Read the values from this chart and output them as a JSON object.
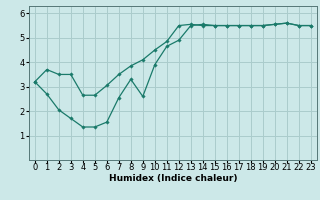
{
  "xlabel": "Humidex (Indice chaleur)",
  "bg_color": "#cce8e8",
  "grid_color": "#aacccc",
  "line_color": "#1a7a6a",
  "line1_x": [
    0,
    1,
    2,
    3,
    4,
    5,
    6,
    7,
    8,
    9,
    10,
    11,
    12,
    13,
    14,
    15,
    16,
    17,
    18,
    19,
    20,
    21,
    22,
    23
  ],
  "line1_y": [
    3.2,
    3.7,
    3.5,
    3.5,
    2.65,
    2.65,
    3.05,
    3.5,
    3.85,
    4.1,
    4.5,
    4.85,
    5.5,
    5.55,
    5.5,
    5.5,
    5.5,
    5.5,
    5.5,
    5.5,
    5.55,
    5.6,
    5.5,
    5.5
  ],
  "line2_x": [
    0,
    1,
    2,
    3,
    4,
    5,
    6,
    7,
    8,
    9,
    10,
    11,
    12,
    13,
    14,
    15,
    16,
    17,
    18,
    19,
    20,
    21,
    22,
    23
  ],
  "line2_y": [
    3.2,
    2.7,
    2.05,
    1.7,
    1.35,
    1.35,
    1.55,
    2.55,
    3.3,
    2.6,
    3.9,
    4.65,
    4.9,
    5.5,
    5.55,
    5.5,
    5.5,
    5.5,
    5.5,
    5.5,
    5.55,
    5.6,
    5.5,
    5.5
  ],
  "ylim": [
    0,
    6.3
  ],
  "xlim": [
    -0.5,
    23.5
  ],
  "yticks": [
    1,
    2,
    3,
    4,
    5,
    6
  ],
  "xticks": [
    0,
    1,
    2,
    3,
    4,
    5,
    6,
    7,
    8,
    9,
    10,
    11,
    12,
    13,
    14,
    15,
    16,
    17,
    18,
    19,
    20,
    21,
    22,
    23
  ],
  "xlabel_fontsize": 6.5,
  "tick_fontsize": 6.0,
  "marker": "D",
  "marker_size": 1.8,
  "line_width": 0.9
}
